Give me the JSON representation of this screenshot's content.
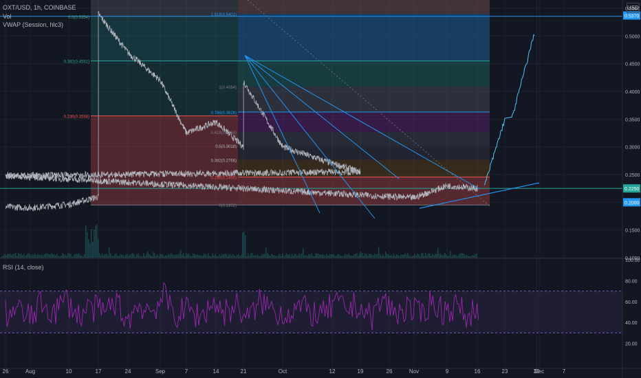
{
  "header": {
    "symbol_line": "OXT/USD, 1h, COINBASE",
    "vol_line": "Vol",
    "vwap_line": "VWAP (Session, hlc3)",
    "currency_button": "USD",
    "rsi_label": "RSI (14, close)"
  },
  "colors": {
    "background": "#131722",
    "grid": "#1e222d",
    "text": "#b2b5be",
    "price_series": "#b2b5be",
    "rsi_series": "#9c27b0",
    "rsi_band": "#7e57c2",
    "trend_lines": "#2196f3",
    "fib_bull_zone": "#26a69a",
    "fib_bear_zone": "#ef5350",
    "current_price_badge": "#2196f3"
  },
  "chart_data": [
    {
      "type": "line",
      "title": "OXT/USD, 1h, COINBASE",
      "x": [
        "26",
        "Aug",
        "10",
        "17",
        "24",
        "Sep",
        "7",
        "14",
        "21",
        "Oct",
        "12",
        "19",
        "26",
        "Nov",
        "9",
        "16",
        "23",
        "30",
        "Dec",
        "7"
      ],
      "series": [
        {
          "name": "OXT/USD",
          "points": [
            [
              "26",
              0.192
            ],
            [
              "Aug",
              0.19
            ],
            [
              "10",
              0.196
            ],
            [
              "17",
              0.21
            ],
            [
              "17",
              0.54
            ],
            [
              "24",
              0.47
            ],
            [
              "Sep",
              0.42
            ],
            [
              "7",
              0.325
            ],
            [
              "14",
              0.345
            ],
            [
              "21",
              0.3
            ],
            [
              "21",
              0.418
            ],
            [
              "Oct",
              0.3
            ],
            [
              "12",
              0.27
            ],
            [
              "19",
              0.255
            ],
            [
              "26",
              0.248
            ],
            [
              "Nov",
              0.208
            ],
            [
              "9",
              0.23
            ],
            [
              "16",
              0.225
            ],
            [
              "16",
              0.228
            ]
          ]
        },
        {
          "name": "projection",
          "points": [
            [
              "16",
              0.228
            ],
            [
              "23",
              0.35
            ],
            [
              "30",
              0.505
            ]
          ]
        }
      ],
      "y_axis": {
        "ticks": [
          "0.5500",
          "0.5000",
          "0.4500",
          "0.4000",
          "0.3500",
          "0.3000",
          "0.2500",
          "0.2000",
          "0.1500",
          "0.1000"
        ],
        "ylim": [
          0.1,
          0.555
        ],
        "position": "right"
      },
      "price_badges": [
        "0.5370",
        "0.2250",
        "0.2000"
      ],
      "fib_levels_left": [
        {
          "label": "0.5(0.5354)",
          "value": 0.5354
        },
        {
          "label": "0.382(0.4551)",
          "value": 0.4551
        },
        {
          "label": "0.236(0.3558)",
          "value": 0.3558
        }
      ],
      "fib_levels_right": [
        {
          "label": "1.618(0.5401)",
          "value": 0.5401
        },
        {
          "label": "1(0.4084)",
          "value": 0.4084
        },
        {
          "label": "0.786(0.3628)",
          "value": 0.3628
        },
        {
          "label": "0.618(0.3269)",
          "value": 0.3269
        },
        {
          "label": "0.5(0.3018)",
          "value": 0.3018
        },
        {
          "label": "0.382(0.2766)",
          "value": 0.2766
        },
        {
          "label": "0.236(0.2455)",
          "value": 0.2455
        },
        {
          "label": "0(0.1952)",
          "value": 0.1952
        }
      ]
    },
    {
      "type": "line",
      "title": "RSI (14, close)",
      "series": [
        {
          "name": "RSI",
          "values": [
            48,
            52,
            44,
            58,
            50,
            62,
            46,
            55,
            49,
            60,
            42,
            57,
            51,
            65,
            47,
            53,
            45,
            59,
            50,
            56,
            43,
            61,
            52,
            48,
            55,
            50,
            46,
            58,
            53,
            57,
            44,
            62,
            49,
            54,
            47,
            60,
            51,
            56,
            45,
            58
          ]
        }
      ],
      "y_axis": {
        "ticks": [
          "100.00",
          "80.00",
          "60.00",
          "40.00",
          "20.00"
        ],
        "ylim": [
          0,
          100
        ]
      },
      "bands": {
        "upper": 70,
        "lower": 30
      }
    }
  ]
}
